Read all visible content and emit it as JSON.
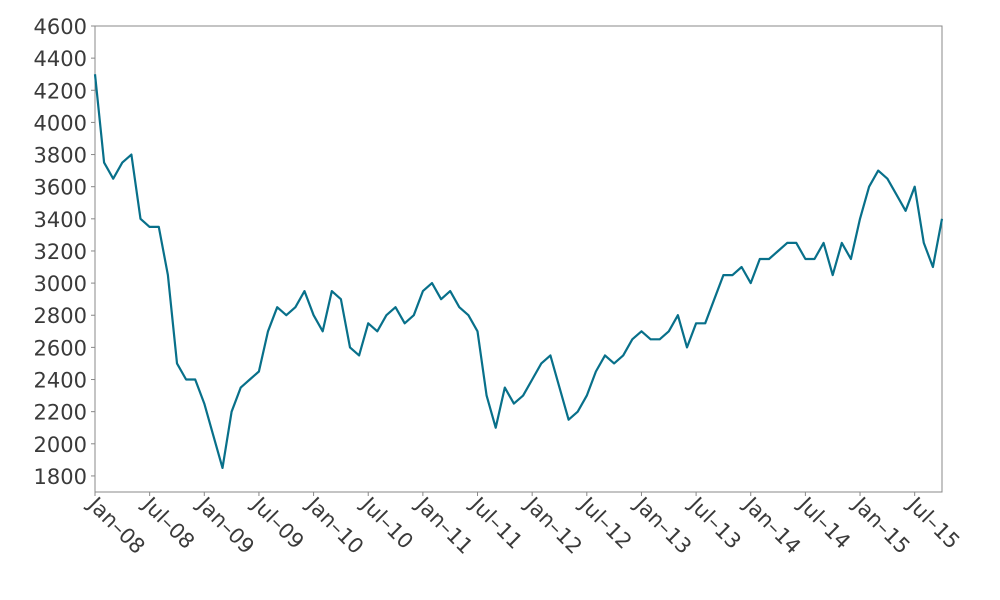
{
  "chart_data": {
    "type": "line",
    "x": [
      "2008-01",
      "2008-02",
      "2008-03",
      "2008-04",
      "2008-05",
      "2008-06",
      "2008-07",
      "2008-08",
      "2008-09",
      "2008-10",
      "2008-11",
      "2008-12",
      "2009-01",
      "2009-02",
      "2009-03",
      "2009-04",
      "2009-05",
      "2009-06",
      "2009-07",
      "2009-08",
      "2009-09",
      "2009-10",
      "2009-11",
      "2009-12",
      "2010-01",
      "2010-02",
      "2010-03",
      "2010-04",
      "2010-05",
      "2010-06",
      "2010-07",
      "2010-08",
      "2010-09",
      "2010-10",
      "2010-11",
      "2010-12",
      "2011-01",
      "2011-02",
      "2011-03",
      "2011-04",
      "2011-05",
      "2011-06",
      "2011-07",
      "2011-08",
      "2011-09",
      "2011-10",
      "2011-11",
      "2011-12",
      "2012-01",
      "2012-02",
      "2012-03",
      "2012-04",
      "2012-05",
      "2012-06",
      "2012-07",
      "2012-08",
      "2012-09",
      "2012-10",
      "2012-11",
      "2012-12",
      "2013-01",
      "2013-02",
      "2013-03",
      "2013-04",
      "2013-05",
      "2013-06",
      "2013-07",
      "2013-08",
      "2013-09",
      "2013-10",
      "2013-11",
      "2013-12",
      "2014-01",
      "2014-02",
      "2014-03",
      "2014-04",
      "2014-05",
      "2014-06",
      "2014-07",
      "2014-08",
      "2014-09",
      "2014-10",
      "2014-11",
      "2014-12",
      "2015-01",
      "2015-02",
      "2015-03",
      "2015-04",
      "2015-05",
      "2015-06",
      "2015-07",
      "2015-08",
      "2015-09",
      "2015-10"
    ],
    "series": [
      {
        "color": "#08708a",
        "values": [
          4300,
          3750,
          3650,
          3750,
          3800,
          3400,
          3350,
          3350,
          3050,
          2500,
          2400,
          2400,
          2250,
          2050,
          1850,
          2200,
          2350,
          2400,
          2450,
          2700,
          2850,
          2800,
          2850,
          2950,
          2800,
          2700,
          2950,
          2900,
          2600,
          2550,
          2750,
          2700,
          2800,
          2850,
          2750,
          2800,
          2950,
          3000,
          2900,
          2950,
          2850,
          2800,
          2700,
          2300,
          2100,
          2350,
          2250,
          2300,
          2400,
          2500,
          2550,
          2350,
          2150,
          2200,
          2300,
          2450,
          2550,
          2500,
          2550,
          2650,
          2700,
          2650,
          2650,
          2700,
          2800,
          2600,
          2750,
          2750,
          2900,
          3050,
          3050,
          3100,
          3000,
          3150,
          3150,
          3200,
          3250,
          3250,
          3150,
          3150,
          3250,
          3050,
          3250,
          3150,
          3400,
          3600,
          3700,
          3650,
          3550,
          3450,
          3600,
          3250,
          3100,
          3400
        ]
      }
    ],
    "xlim": [
      "2008-01",
      "2015-10"
    ],
    "xticks": [
      {
        "value": "2008-01",
        "label": "Jan–08"
      },
      {
        "value": "2008-07",
        "label": "Jul–08"
      },
      {
        "value": "2009-01",
        "label": "Jan–09"
      },
      {
        "value": "2009-07",
        "label": "Jul–09"
      },
      {
        "value": "2010-01",
        "label": "Jan–10"
      },
      {
        "value": "2010-07",
        "label": "Jul–10"
      },
      {
        "value": "2011-01",
        "label": "Jan–11"
      },
      {
        "value": "2011-07",
        "label": "Jul–11"
      },
      {
        "value": "2012-01",
        "label": "Jan–12"
      },
      {
        "value": "2012-07",
        "label": "Jul–12"
      },
      {
        "value": "2013-01",
        "label": "Jan–13"
      },
      {
        "value": "2013-07",
        "label": "Jul–13"
      },
      {
        "value": "2014-01",
        "label": "Jan–14"
      },
      {
        "value": "2014-07",
        "label": "Jul–14"
      },
      {
        "value": "2015-01",
        "label": "Jan–15"
      },
      {
        "value": "2015-07",
        "label": "Jul–15"
      }
    ],
    "ylim": [
      1700,
      4600
    ],
    "yticks": [
      1800,
      2000,
      2200,
      2400,
      2600,
      2800,
      3000,
      3200,
      3400,
      3600,
      3800,
      4000,
      4200,
      4400,
      4600
    ],
    "grid": false
  }
}
